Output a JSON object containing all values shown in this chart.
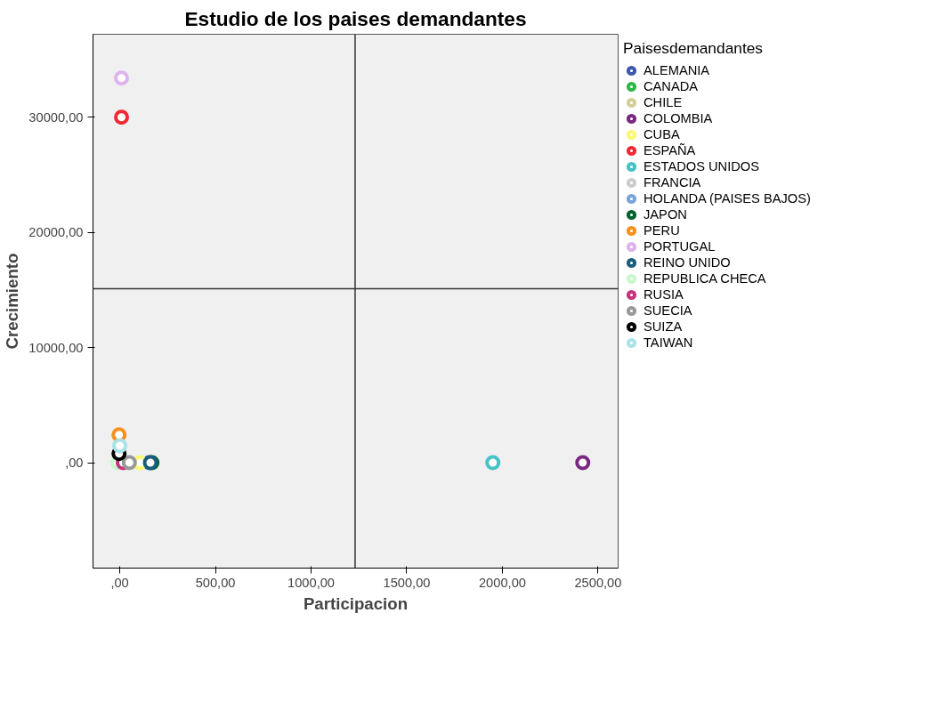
{
  "chart_data": {
    "type": "scatter",
    "title": "Estudio de los paises demandantes",
    "xlabel": "Participacion",
    "ylabel": "Crecimiento",
    "legend_title": "Paisesdemandantes",
    "legend": "right",
    "grid": false,
    "marker": "circle",
    "xlim": [
      -140,
      2605
    ],
    "ylim": [
      -9150,
      37200
    ],
    "xticks": [
      {
        "value": 0,
        "label": ",00"
      },
      {
        "value": 500,
        "label": "500,00"
      },
      {
        "value": 1000,
        "label": "1000,00"
      },
      {
        "value": 1500,
        "label": "1500,00"
      },
      {
        "value": 2000,
        "label": "2000,00"
      },
      {
        "value": 2500,
        "label": "2500,00"
      }
    ],
    "yticks": [
      {
        "value": 0,
        "label": ",00"
      },
      {
        "value": 10000,
        "label": "10000,00"
      },
      {
        "value": 20000,
        "label": "20000,00"
      },
      {
        "value": 30000,
        "label": "30000,00"
      }
    ],
    "ref_lines": [
      {
        "axis": "x",
        "value": 1230,
        "color": "#333333"
      },
      {
        "axis": "y",
        "value": 15100,
        "color": "#333333"
      }
    ],
    "series": [
      {
        "name": "ALEMANIA",
        "color": "#3e58ac",
        "x": [
          155
        ],
        "values": [
          0
        ]
      },
      {
        "name": "CANADA",
        "color": "#2eb848",
        "x": [
          null
        ],
        "values": [
          null
        ]
      },
      {
        "name": "CHILE",
        "color": "#d4cf9a",
        "x": [
          null
        ],
        "values": [
          null
        ]
      },
      {
        "name": "COLOMBIA",
        "color": "#7b2882",
        "x": [
          2420
        ],
        "values": [
          0
        ]
      },
      {
        "name": "CUBA",
        "color": "#fbf873",
        "x": [
          106
        ],
        "values": [
          0
        ]
      },
      {
        "name": "ESPAÑA",
        "color": "#ef2a35",
        "x": [
          9
        ],
        "values": [
          30000
        ]
      },
      {
        "name": "ESTADOS UNIDOS",
        "color": "#48c2c5",
        "x": [
          1950
        ],
        "values": [
          0
        ]
      },
      {
        "name": "FRANCIA",
        "color": "#cccccc",
        "x": [
          null
        ],
        "values": [
          null
        ]
      },
      {
        "name": "HOLANDA (PAISES BAJOS)",
        "color": "#7ba4dc",
        "x": [
          null
        ],
        "values": [
          null
        ]
      },
      {
        "name": "JAPON",
        "color": "#00622d",
        "x": [
          168
        ],
        "values": [
          0
        ]
      },
      {
        "name": "PERU",
        "color": "#f7901e",
        "x": [
          -4
        ],
        "values": [
          2420
        ]
      },
      {
        "name": "PORTUGAL",
        "color": "#deb3ed",
        "x": [
          9
        ],
        "values": [
          33400
        ]
      },
      {
        "name": "REINO UNIDO",
        "color": "#1a5e7c",
        "x": [
          160
        ],
        "values": [
          0
        ]
      },
      {
        "name": "REPUBLICA CHECA",
        "color": "#c7f9cc",
        "x": [
          -10
        ],
        "values": [
          0
        ]
      },
      {
        "name": "RUSIA",
        "color": "#c5337c",
        "x": [
          18
        ],
        "values": [
          0
        ]
      },
      {
        "name": "SUECIA",
        "color": "#999999",
        "x": [
          50
        ],
        "values": [
          10
        ]
      },
      {
        "name": "SUIZA",
        "color": "#000000",
        "x": [
          -4
        ],
        "values": [
          800
        ]
      },
      {
        "name": "TAIWAN",
        "color": "#abe2e6",
        "x": [
          0
        ],
        "values": [
          1470
        ]
      }
    ]
  }
}
